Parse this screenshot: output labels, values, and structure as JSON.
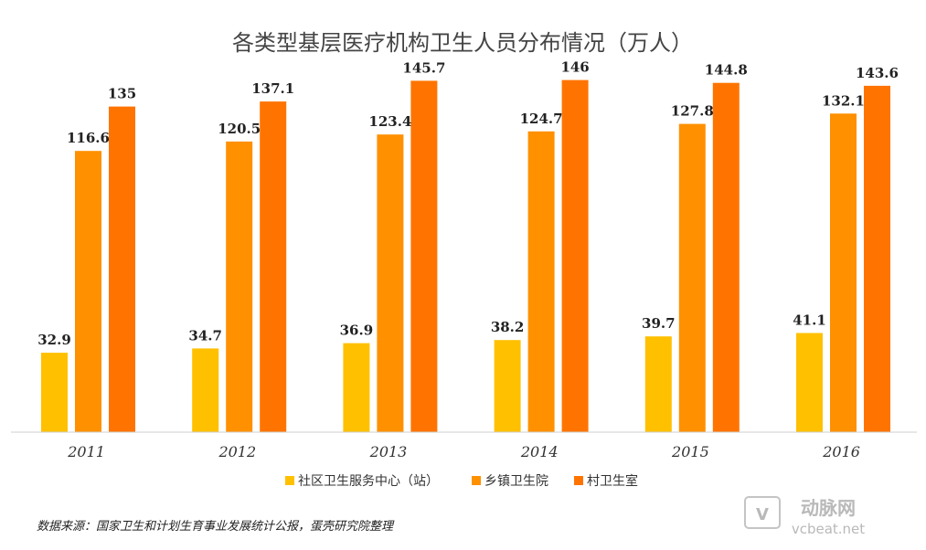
{
  "chart_data": {
    "type": "bar",
    "title": "各类型基层医疗机构卫生人员分布情况（万人）",
    "categories": [
      "2011",
      "2012",
      "2013",
      "2014",
      "2015",
      "2016"
    ],
    "series": [
      {
        "name": "社区卫生服务中心（站）",
        "color": "#FFC000",
        "values": [
          32.9,
          34.7,
          36.9,
          38.2,
          39.7,
          41.1
        ]
      },
      {
        "name": "乡镇卫生院",
        "color": "#FF9000",
        "values": [
          116.6,
          120.5,
          123.4,
          124.7,
          127.8,
          132.1
        ]
      },
      {
        "name": "村卫生室",
        "color": "#FF7400",
        "values": [
          135,
          137.1,
          145.7,
          146,
          144.8,
          143.6
        ]
      }
    ],
    "ylim": [
      0,
      150
    ],
    "grid": false,
    "legend_position": "bottom"
  },
  "source_note": "数据来源：国家卫生和计划生育事业发展统计公报，蛋壳研究院整理",
  "watermark": {
    "brand": "动脉网",
    "site": "vcbeat.net"
  }
}
